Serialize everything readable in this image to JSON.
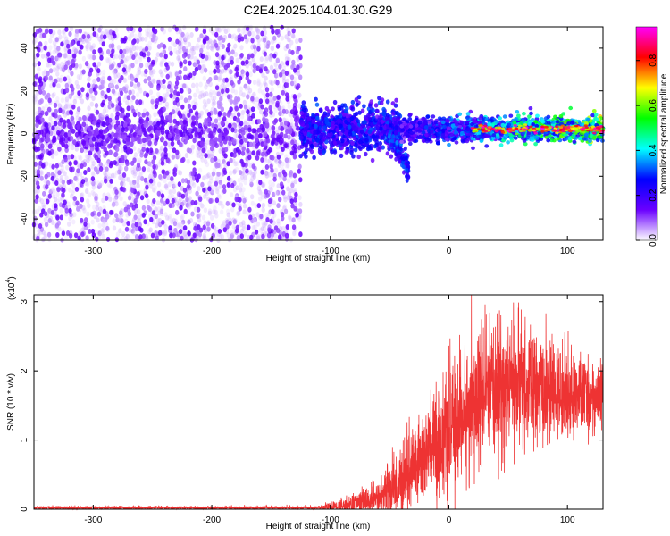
{
  "title": "C2E4.2025.104.01.30.G29",
  "chart_data": [
    {
      "type": "heatmap",
      "xlabel": "Height of straight line (km)",
      "ylabel": "Frequency (Hz)",
      "xlim": [
        -350,
        130
      ],
      "ylim": [
        -50,
        50
      ],
      "xticks": [
        -300,
        -200,
        -100,
        0,
        100
      ],
      "yticks": [
        -40,
        -20,
        0,
        20,
        40
      ],
      "colorbar": {
        "label": "Normalized spectral amplitude",
        "range": [
          0.0,
          0.95
        ],
        "ticks": [
          0.0,
          0.2,
          0.4,
          0.6,
          0.8
        ],
        "colormap": [
          "#ffffff",
          "#6a00ff",
          "#0000ff",
          "#00ffff",
          "#00ff00",
          "#ffff00",
          "#ff0000",
          "#ff00ff"
        ]
      },
      "regions": [
        {
          "x_range": [
            -350,
            -125
          ],
          "description": "broadband noise across all frequencies, amplitude approx 0.0-0.1"
        },
        {
          "x_range": [
            -125,
            -40
          ],
          "center_hz": 2,
          "spread_hz": 6,
          "amplitude": 0.25
        },
        {
          "x_range": [
            -50,
            -35
          ],
          "center_hz": -15,
          "spread_hz": 5,
          "amplitude": 0.3
        },
        {
          "x_range": [
            -40,
            130
          ],
          "center_hz": 2,
          "spread_hz": 3,
          "amplitude_range": [
            0.25,
            0.9
          ]
        }
      ]
    },
    {
      "type": "line",
      "series": [
        {
          "color": "#ee3333"
        }
      ],
      "xlabel": "Height of straight line (km)",
      "ylabel": "SNR (10 * v/v)",
      "yscale_label": "(x10",
      "yscale_exp": "4",
      "xlim": [
        -350,
        130
      ],
      "ylim": [
        0,
        3.1
      ],
      "xticks": [
        -300,
        -200,
        -100,
        0,
        100
      ],
      "yticks": [
        0,
        1,
        2,
        3
      ],
      "envelope": [
        {
          "x": -350,
          "mean": 0.02,
          "spread": 0.02
        },
        {
          "x": -110,
          "mean": 0.02,
          "spread": 0.02
        },
        {
          "x": -90,
          "mean": 0.05,
          "spread": 0.08
        },
        {
          "x": -60,
          "mean": 0.15,
          "spread": 0.2
        },
        {
          "x": -40,
          "mean": 0.4,
          "spread": 0.45
        },
        {
          "x": -20,
          "mean": 0.8,
          "spread": 0.6
        },
        {
          "x": 0,
          "mean": 1.1,
          "spread": 0.7
        },
        {
          "x": 20,
          "mean": 1.5,
          "spread": 0.8
        },
        {
          "x": 50,
          "mean": 1.8,
          "spread": 0.8
        },
        {
          "x": 80,
          "mean": 1.7,
          "spread": 0.6
        },
        {
          "x": 130,
          "mean": 1.6,
          "spread": 0.4
        }
      ]
    }
  ]
}
